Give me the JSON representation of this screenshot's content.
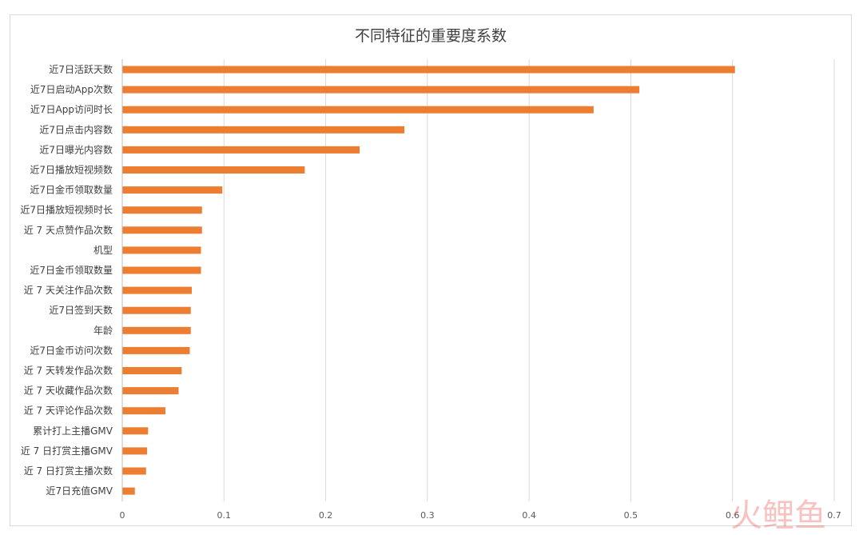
{
  "chart_data": {
    "type": "bar",
    "orientation": "horizontal",
    "title": "不同特征的重要度系数",
    "categories": [
      "近7日活跃天数",
      "近7日启动App次数",
      "近7日App访问时长",
      "近7日点击内容数",
      "近7日曝光内容数",
      "近7日播放短视频数",
      "近7日金币领取数量",
      "近7日播放短视频时长",
      "近 7 天点赞作品次数",
      "机型",
      "近7日金币领取数量",
      "近 7 天关注作品次数",
      "近7日签到天数",
      "年龄",
      "近7日金币访问次数",
      "近 7 天转发作品次数",
      "近 7 天收藏作品次数",
      "近 7 天评论作品次数",
      "累计打上主播GMV",
      "近 7 日打赏主播GMV",
      "近 7 日打赏主播次数",
      "近7日充值GMV"
    ],
    "values": [
      0.602,
      0.508,
      0.463,
      0.277,
      0.233,
      0.179,
      0.098,
      0.078,
      0.078,
      0.077,
      0.077,
      0.068,
      0.067,
      0.067,
      0.066,
      0.058,
      0.055,
      0.042,
      0.025,
      0.024,
      0.023,
      0.012
    ],
    "xlim": [
      0,
      0.7
    ],
    "xticks": [
      "0",
      "0.1",
      "0.2",
      "0.3",
      "0.4",
      "0.5",
      "0.6",
      "0.7"
    ],
    "grid": true,
    "bar_color": "#ed7d31",
    "legend": "none"
  }
}
